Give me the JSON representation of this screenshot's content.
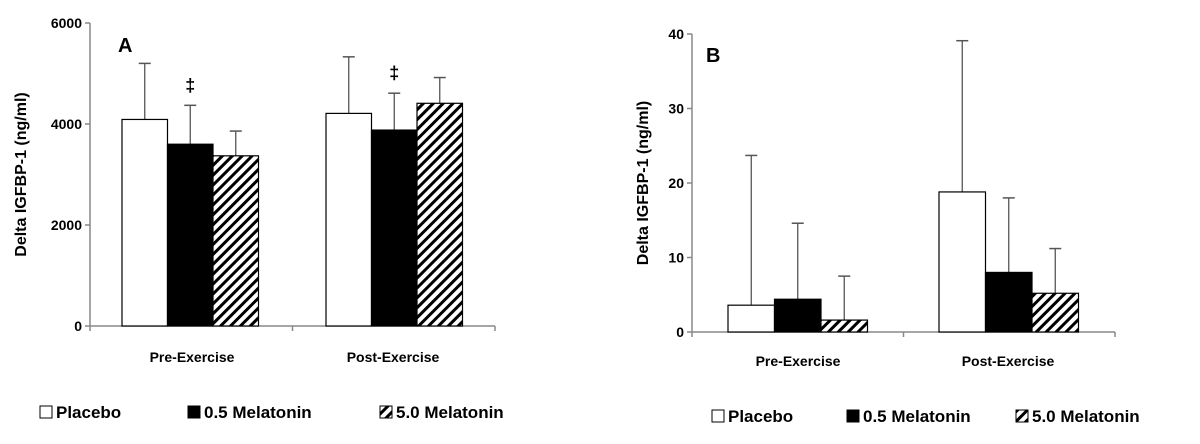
{
  "chart_data": [
    {
      "type": "bar",
      "panel_label": "A",
      "ylabel": "Delta IGFBP-1 (ng/ml)",
      "xlabel": "",
      "ylim": [
        0,
        6000
      ],
      "yticks": [
        "0",
        "2000",
        "4000",
        "6000"
      ],
      "categories": [
        "Pre-Exercise",
        "Post-Exercise"
      ],
      "series": [
        {
          "name": "Placebo",
          "fill": "white",
          "values": [
            4090,
            4210
          ],
          "error_upper": [
            5200,
            5330
          ]
        },
        {
          "name": "0.5 Melatonin",
          "fill": "black",
          "values": [
            3600,
            3880
          ],
          "error_upper": [
            4370,
            4610
          ]
        },
        {
          "name": "5.0 Melatonin",
          "fill": "hatched",
          "values": [
            3370,
            4410
          ],
          "error_upper": [
            3860,
            4920
          ]
        }
      ],
      "annotations": [
        {
          "text": "‡",
          "category": "Pre-Exercise",
          "series": "0.5 Melatonin"
        },
        {
          "text": "‡",
          "category": "Post-Exercise",
          "series": "0.5 Melatonin"
        }
      ],
      "legend": {
        "placement": "bottom",
        "items": [
          "Placebo",
          "0.5 Melatonin",
          "5.0 Melatonin"
        ]
      },
      "grid": false
    },
    {
      "type": "bar",
      "panel_label": "B",
      "ylabel": "Delta IGFBP-1 (ng/ml)",
      "xlabel": "",
      "ylim": [
        0,
        40
      ],
      "yticks": [
        "0",
        "10",
        "20",
        "30",
        "40"
      ],
      "categories": [
        "Pre-Exercise",
        "Post-Exercise"
      ],
      "series": [
        {
          "name": "Placebo",
          "fill": "white",
          "values": [
            3.6,
            18.8
          ],
          "error_upper": [
            23.7,
            39.1
          ]
        },
        {
          "name": "0.5 Melatonin",
          "fill": "black",
          "values": [
            4.4,
            8.0
          ],
          "error_upper": [
            14.6,
            18.0
          ]
        },
        {
          "name": "5.0 Melatonin",
          "fill": "hatched",
          "values": [
            1.6,
            5.2
          ],
          "error_upper": [
            7.5,
            11.2
          ]
        }
      ],
      "annotations": [],
      "legend": {
        "placement": "bottom",
        "items": [
          "Placebo",
          "0.5 Melatonin",
          "5.0 Melatonin"
        ]
      },
      "grid": false
    }
  ]
}
